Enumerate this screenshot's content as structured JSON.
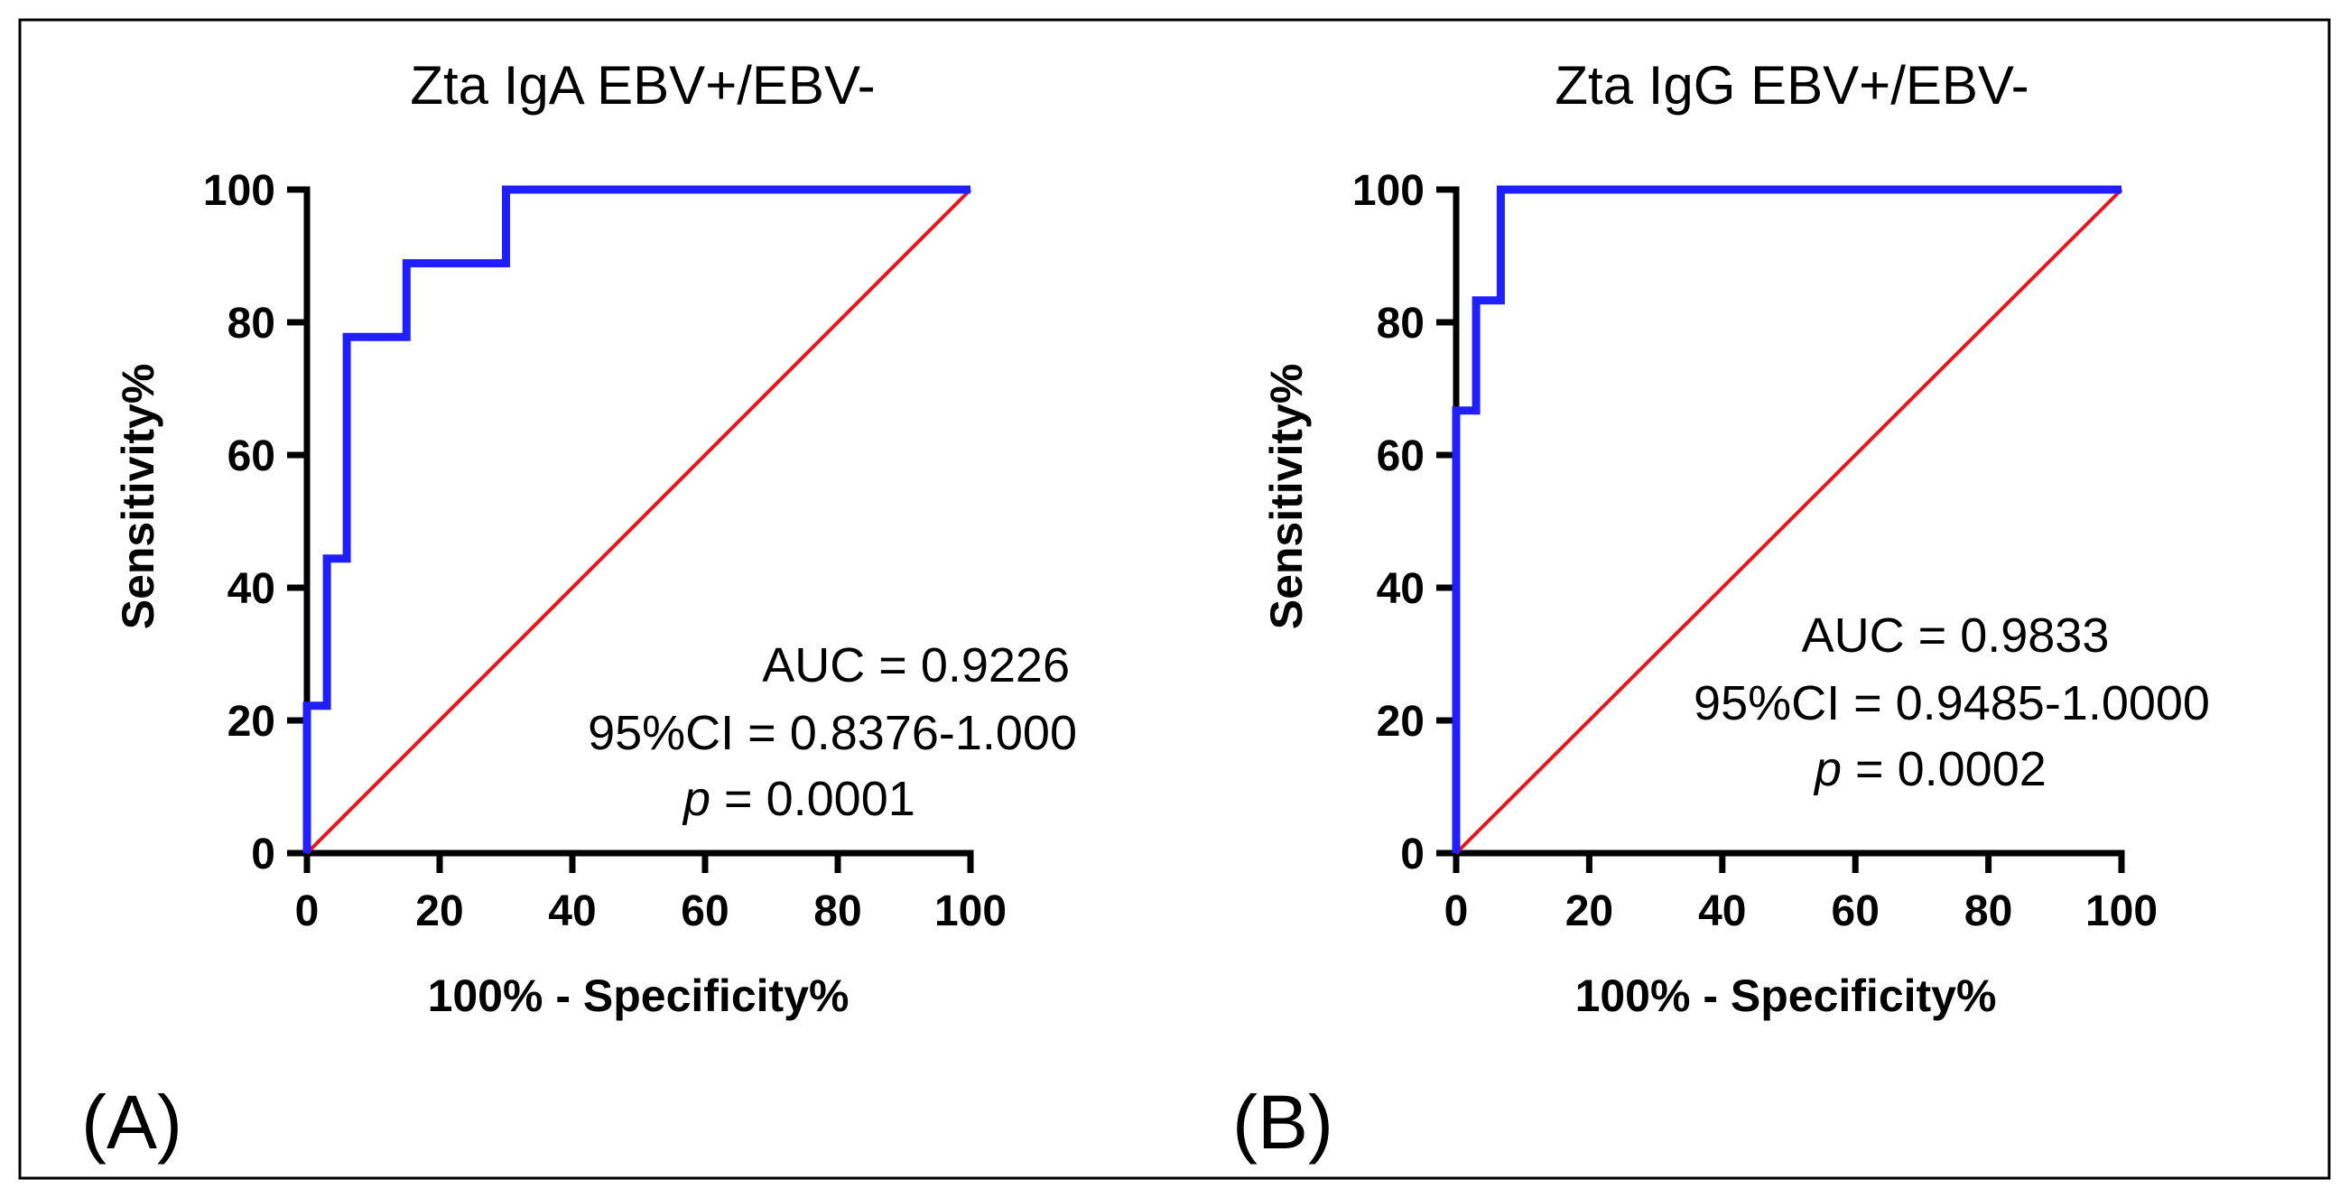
{
  "colors": {
    "roc": "#1f1fff",
    "reference": "#e8161c",
    "axis": "#000000"
  },
  "panels": [
    {
      "label": "(A)"
    },
    {
      "label": "(B)"
    }
  ],
  "chart_data": [
    {
      "type": "line",
      "title": "Zta IgA EBV+/EBV-",
      "xlabel": "100% - Specificity%",
      "ylabel": "Sensitivity%",
      "xlim": [
        0,
        100
      ],
      "ylim": [
        0,
        100
      ],
      "xticks": [
        "0",
        "20",
        "40",
        "60",
        "80",
        "100"
      ],
      "yticks": [
        "0",
        "20",
        "40",
        "60",
        "80",
        "100"
      ],
      "series": [
        {
          "name": "ROC curve",
          "color": "#1f1fff",
          "x": [
            0,
            0,
            3,
            3,
            6,
            6,
            15,
            15,
            30,
            30,
            100
          ],
          "y": [
            0,
            22.2,
            22.2,
            44.4,
            44.4,
            77.8,
            77.8,
            88.9,
            88.9,
            100,
            100
          ]
        },
        {
          "name": "Reference line",
          "color": "#e8161c",
          "x": [
            0,
            100
          ],
          "y": [
            0,
            100
          ]
        }
      ],
      "annotations": {
        "auc": "AUC = 0.9226",
        "ci": "95%CI = 0.8376-1.000",
        "p_symbol": "p",
        "p_value": " = 0.0001"
      }
    },
    {
      "type": "line",
      "title": "Zta IgG EBV+/EBV-",
      "xlabel": "100% - Specificity%",
      "ylabel": "Sensitivity%",
      "xlim": [
        0,
        100
      ],
      "ylim": [
        0,
        100
      ],
      "xticks": [
        "0",
        "20",
        "40",
        "60",
        "80",
        "100"
      ],
      "yticks": [
        "0",
        "20",
        "40",
        "60",
        "80",
        "100"
      ],
      "series": [
        {
          "name": "ROC curve",
          "color": "#1f1fff",
          "x": [
            0,
            0,
            3,
            3,
            6.7,
            6.7,
            100
          ],
          "y": [
            0,
            66.7,
            66.7,
            83.3,
            83.3,
            100,
            100
          ]
        },
        {
          "name": "Reference line",
          "color": "#e8161c",
          "x": [
            0,
            100
          ],
          "y": [
            0,
            100
          ]
        }
      ],
      "annotations": {
        "auc": "AUC = 0.9833",
        "ci": "95%CI = 0.9485-1.0000",
        "p_symbol": "p",
        "p_value": " = 0.0002"
      }
    }
  ]
}
